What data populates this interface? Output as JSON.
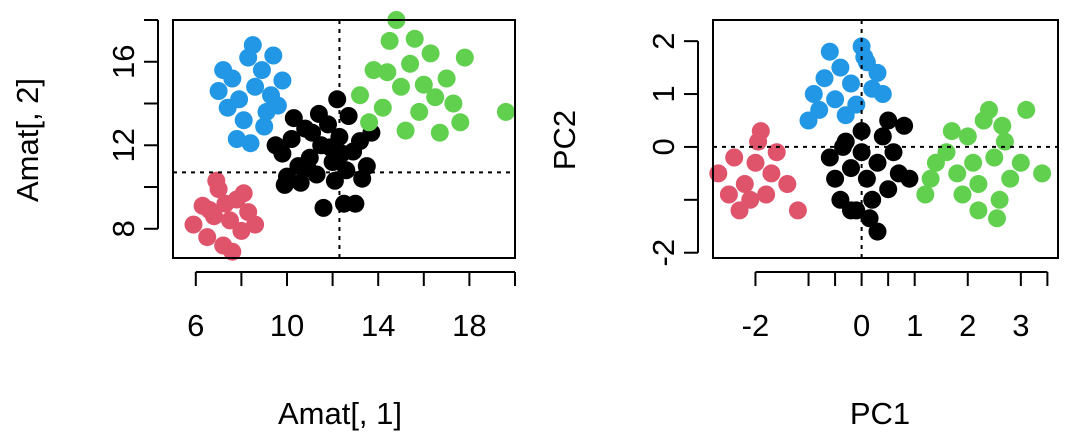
{
  "chart_data": [
    {
      "type": "scatter",
      "xlabel": "Amat[, 1]",
      "ylabel": "Amat[, 2]",
      "xlim": [
        5,
        20
      ],
      "ylim": [
        6.6,
        18
      ],
      "xticks": [
        "6",
        "10",
        "14",
        "18"
      ],
      "xtick_values": [
        6,
        10,
        14,
        18
      ],
      "yticks": [
        "8",
        "12",
        "16"
      ],
      "ytick_values": [
        8,
        12,
        16
      ],
      "grid": false,
      "reference_lines": {
        "vertical": 12.3,
        "horizontal": 10.7
      },
      "colors": {
        "black": "#000000",
        "red": "#df536b",
        "blue": "#2297e6",
        "green": "#61d04f"
      },
      "series": [
        {
          "color": "black",
          "points": [
            [
              9.8,
              11.6
            ],
            [
              10.2,
              12.3
            ],
            [
              10.5,
              11.0
            ],
            [
              10.8,
              12.8
            ],
            [
              11.0,
              11.4
            ],
            [
              11.3,
              10.6
            ],
            [
              11.5,
              12.0
            ],
            [
              11.8,
              13.0
            ],
            [
              12.0,
              11.2
            ],
            [
              12.3,
              12.4
            ],
            [
              12.6,
              10.8
            ],
            [
              12.9,
              11.7
            ],
            [
              13.2,
              12.2
            ],
            [
              13.5,
              11.0
            ],
            [
              10.0,
              10.5
            ],
            [
              10.6,
              10.2
            ],
            [
              11.4,
              13.5
            ],
            [
              12.2,
              14.2
            ],
            [
              12.5,
              9.2
            ],
            [
              11.6,
              9.0
            ],
            [
              13.0,
              9.2
            ],
            [
              9.5,
              12.0
            ],
            [
              10.3,
              13.3
            ],
            [
              11.9,
              11.9
            ],
            [
              12.7,
              13.4
            ],
            [
              13.3,
              10.4
            ],
            [
              9.9,
              10.1
            ],
            [
              11.1,
              12.6
            ],
            [
              12.4,
              11.6
            ],
            [
              13.7,
              12.6
            ],
            [
              10.9,
              10.9
            ],
            [
              12.1,
              10.3
            ]
          ]
        },
        {
          "color": "red",
          "points": [
            [
              5.9,
              8.2
            ],
            [
              6.3,
              9.1
            ],
            [
              6.5,
              7.6
            ],
            [
              6.8,
              8.6
            ],
            [
              7.0,
              9.9
            ],
            [
              7.2,
              7.2
            ],
            [
              7.5,
              8.4
            ],
            [
              7.8,
              9.4
            ],
            [
              8.0,
              7.9
            ],
            [
              8.3,
              8.8
            ],
            [
              8.6,
              8.2
            ],
            [
              6.9,
              10.3
            ],
            [
              7.6,
              6.9
            ],
            [
              7.3,
              9.2
            ],
            [
              8.1,
              9.7
            ],
            [
              6.6,
              8.9
            ]
          ]
        },
        {
          "color": "blue",
          "points": [
            [
              7.0,
              14.6
            ],
            [
              7.4,
              13.8
            ],
            [
              7.6,
              15.2
            ],
            [
              7.9,
              14.2
            ],
            [
              8.1,
              13.2
            ],
            [
              8.3,
              16.2
            ],
            [
              8.5,
              16.8
            ],
            [
              8.6,
              14.8
            ],
            [
              8.9,
              15.6
            ],
            [
              9.1,
              13.6
            ],
            [
              9.3,
              14.4
            ],
            [
              9.6,
              13.9
            ],
            [
              9.8,
              15.1
            ],
            [
              7.8,
              12.3
            ],
            [
              8.4,
              12.1
            ],
            [
              9.0,
              12.9
            ],
            [
              7.2,
              15.6
            ],
            [
              9.4,
              16.3
            ]
          ]
        },
        {
          "color": "green",
          "points": [
            [
              13.2,
              14.4
            ],
            [
              13.8,
              15.6
            ],
            [
              14.2,
              13.8
            ],
            [
              14.5,
              17.0
            ],
            [
              14.8,
              18.0
            ],
            [
              15.0,
              14.8
            ],
            [
              15.4,
              15.9
            ],
            [
              15.8,
              13.6
            ],
            [
              16.0,
              14.9
            ],
            [
              16.3,
              16.4
            ],
            [
              16.7,
              12.6
            ],
            [
              17.0,
              15.2
            ],
            [
              17.3,
              14.0
            ],
            [
              17.6,
              13.1
            ],
            [
              17.8,
              16.2
            ],
            [
              15.2,
              12.7
            ],
            [
              14.4,
              15.5
            ],
            [
              16.5,
              14.3
            ],
            [
              19.6,
              13.6
            ],
            [
              13.6,
              13.1
            ],
            [
              15.6,
              17.1
            ]
          ]
        }
      ]
    },
    {
      "type": "scatter",
      "xlabel": "PC1",
      "ylabel": "PC2",
      "xlim": [
        -2.8,
        3.7
      ],
      "ylim": [
        -2.1,
        2.4
      ],
      "xticks": [
        "-2",
        "0",
        "1",
        "2",
        "3"
      ],
      "xtick_values": [
        -2,
        0,
        1,
        2,
        3
      ],
      "unlabeled_xtick_values": [
        -1,
        -0.5,
        0.5
      ],
      "yticks": [
        "-2",
        "0",
        "1",
        "2"
      ],
      "ytick_values": [
        -2,
        0,
        1,
        2
      ],
      "grid": false,
      "reference_lines": {
        "vertical": 0,
        "horizontal": 0
      },
      "series": [
        {
          "color": "black",
          "points": [
            [
              -0.6,
              -0.2
            ],
            [
              -0.5,
              -0.6
            ],
            [
              -0.4,
              -1.0
            ],
            [
              -0.3,
              0.1
            ],
            [
              -0.2,
              -0.4
            ],
            [
              -0.1,
              -1.2
            ],
            [
              0.0,
              0.3
            ],
            [
              0.0,
              -0.1
            ],
            [
              0.1,
              -0.6
            ],
            [
              0.2,
              -1.0
            ],
            [
              0.3,
              -0.3
            ],
            [
              0.4,
              0.2
            ],
            [
              0.5,
              -0.8
            ],
            [
              0.6,
              -0.1
            ],
            [
              0.7,
              -0.5
            ],
            [
              0.8,
              0.4
            ],
            [
              0.3,
              -1.6
            ],
            [
              -0.2,
              -1.2
            ],
            [
              0.5,
              0.5
            ],
            [
              -0.35,
              0.0
            ],
            [
              0.15,
              -1.35
            ],
            [
              0.9,
              -0.6
            ]
          ]
        },
        {
          "color": "red",
          "points": [
            [
              -2.7,
              -0.5
            ],
            [
              -2.5,
              -0.9
            ],
            [
              -2.4,
              -0.2
            ],
            [
              -2.3,
              -1.2
            ],
            [
              -2.2,
              -0.7
            ],
            [
              -2.0,
              -0.3
            ],
            [
              -1.9,
              0.3
            ],
            [
              -1.8,
              -0.9
            ],
            [
              -1.7,
              -0.5
            ],
            [
              -1.6,
              -0.1
            ],
            [
              -1.4,
              -0.7
            ],
            [
              -1.2,
              -1.2
            ],
            [
              -2.1,
              -1.0
            ],
            [
              -1.95,
              0.1
            ]
          ]
        },
        {
          "color": "blue",
          "points": [
            [
              -1.0,
              0.5
            ],
            [
              -0.9,
              1.0
            ],
            [
              -0.8,
              0.7
            ],
            [
              -0.7,
              1.3
            ],
            [
              -0.6,
              1.8
            ],
            [
              -0.5,
              0.9
            ],
            [
              -0.4,
              1.5
            ],
            [
              -0.3,
              0.6
            ],
            [
              -0.2,
              1.2
            ],
            [
              -0.1,
              0.8
            ],
            [
              0.0,
              1.9
            ],
            [
              0.1,
              1.6
            ],
            [
              0.2,
              1.1
            ],
            [
              0.3,
              1.4
            ],
            [
              0.4,
              1.0
            ],
            [
              0.05,
              1.7
            ]
          ]
        },
        {
          "color": "green",
          "points": [
            [
              1.3,
              -0.6
            ],
            [
              1.4,
              -0.3
            ],
            [
              1.6,
              -0.1
            ],
            [
              1.7,
              0.3
            ],
            [
              1.8,
              -0.5
            ],
            [
              1.9,
              -0.9
            ],
            [
              2.0,
              0.2
            ],
            [
              2.1,
              -0.3
            ],
            [
              2.2,
              -0.7
            ],
            [
              2.3,
              0.5
            ],
            [
              2.4,
              0.7
            ],
            [
              2.5,
              -0.2
            ],
            [
              2.6,
              -1.0
            ],
            [
              2.7,
              0.1
            ],
            [
              2.8,
              -0.6
            ],
            [
              3.0,
              -0.3
            ],
            [
              3.1,
              0.7
            ],
            [
              3.4,
              -0.5
            ],
            [
              1.2,
              -0.9
            ],
            [
              2.2,
              -1.2
            ],
            [
              2.55,
              -1.35
            ],
            [
              2.65,
              0.4
            ]
          ]
        }
      ]
    }
  ]
}
